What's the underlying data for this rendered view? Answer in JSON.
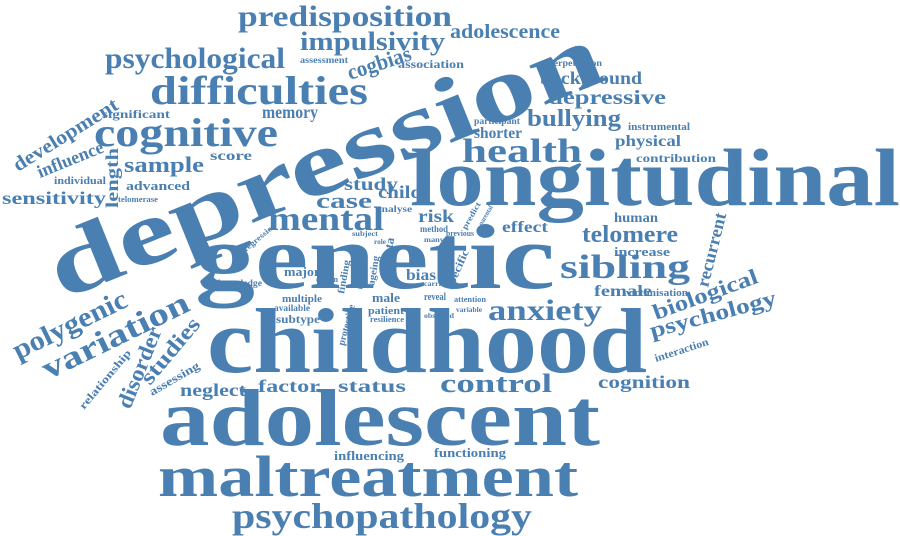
{
  "color": "#4a7fb2",
  "words": [
    {
      "text": "depression"
    },
    {
      "text": "longitudinal"
    },
    {
      "text": "genetic"
    },
    {
      "text": "childhood"
    },
    {
      "text": "adolescent"
    },
    {
      "text": "maltreatment"
    },
    {
      "text": "psychopathology"
    },
    {
      "text": "cognitive"
    },
    {
      "text": "difficulties"
    },
    {
      "text": "psychological"
    },
    {
      "text": "predisposition"
    },
    {
      "text": "impulsivity"
    },
    {
      "text": "adolescence"
    },
    {
      "text": "cogbias"
    },
    {
      "text": "association"
    },
    {
      "text": "assessment"
    },
    {
      "text": "perpetration"
    },
    {
      "text": "background"
    },
    {
      "text": "depressive"
    },
    {
      "text": "bullying"
    },
    {
      "text": "health"
    },
    {
      "text": "shorter"
    },
    {
      "text": "participant"
    },
    {
      "text": "instrumental"
    },
    {
      "text": "physical"
    },
    {
      "text": "contribution"
    },
    {
      "text": "memory"
    },
    {
      "text": "significant"
    },
    {
      "text": "development"
    },
    {
      "text": "influence"
    },
    {
      "text": "individual"
    },
    {
      "text": "sensitivity"
    },
    {
      "text": "length"
    },
    {
      "text": "sample"
    },
    {
      "text": "score"
    },
    {
      "text": "advanced"
    },
    {
      "text": "telomerase"
    },
    {
      "text": "mental"
    },
    {
      "text": "case"
    },
    {
      "text": "study"
    },
    {
      "text": "child"
    },
    {
      "text": "analyse"
    },
    {
      "text": "risk"
    },
    {
      "text": "effect"
    },
    {
      "text": "human"
    },
    {
      "text": "telomere"
    },
    {
      "text": "recurrent"
    },
    {
      "text": "sibling"
    },
    {
      "text": "increase"
    },
    {
      "text": "anxiety"
    },
    {
      "text": "female"
    },
    {
      "text": "victimisation"
    },
    {
      "text": "biological"
    },
    {
      "text": "psychology"
    },
    {
      "text": "polygenic"
    },
    {
      "text": "variation"
    },
    {
      "text": "studies"
    },
    {
      "text": "disorder"
    },
    {
      "text": "relationship"
    },
    {
      "text": "assessing"
    },
    {
      "text": "neglect"
    },
    {
      "text": "factor"
    },
    {
      "text": "status"
    },
    {
      "text": "control"
    },
    {
      "text": "cognition"
    },
    {
      "text": "interaction"
    },
    {
      "text": "influencing"
    },
    {
      "text": "functioning"
    },
    {
      "text": "major"
    },
    {
      "text": "knowledge"
    },
    {
      "text": "multiple"
    },
    {
      "text": "available"
    },
    {
      "text": "subtype"
    },
    {
      "text": "design"
    },
    {
      "text": "finding"
    },
    {
      "text": "male"
    },
    {
      "text": "bias"
    },
    {
      "text": "patient"
    },
    {
      "text": "resilience"
    },
    {
      "text": "protective"
    },
    {
      "text": "reveal"
    },
    {
      "text": "observed"
    },
    {
      "text": "attention"
    },
    {
      "text": "variable"
    },
    {
      "text": "specific"
    },
    {
      "text": "regression"
    },
    {
      "text": "subject"
    },
    {
      "text": "data"
    },
    {
      "text": "ageing"
    },
    {
      "text": "result"
    },
    {
      "text": "carrier"
    },
    {
      "text": "biases"
    },
    {
      "text": "method"
    },
    {
      "text": "previous"
    },
    {
      "text": "predict"
    },
    {
      "text": "parental"
    },
    {
      "text": "many"
    },
    {
      "text": "role"
    }
  ]
}
